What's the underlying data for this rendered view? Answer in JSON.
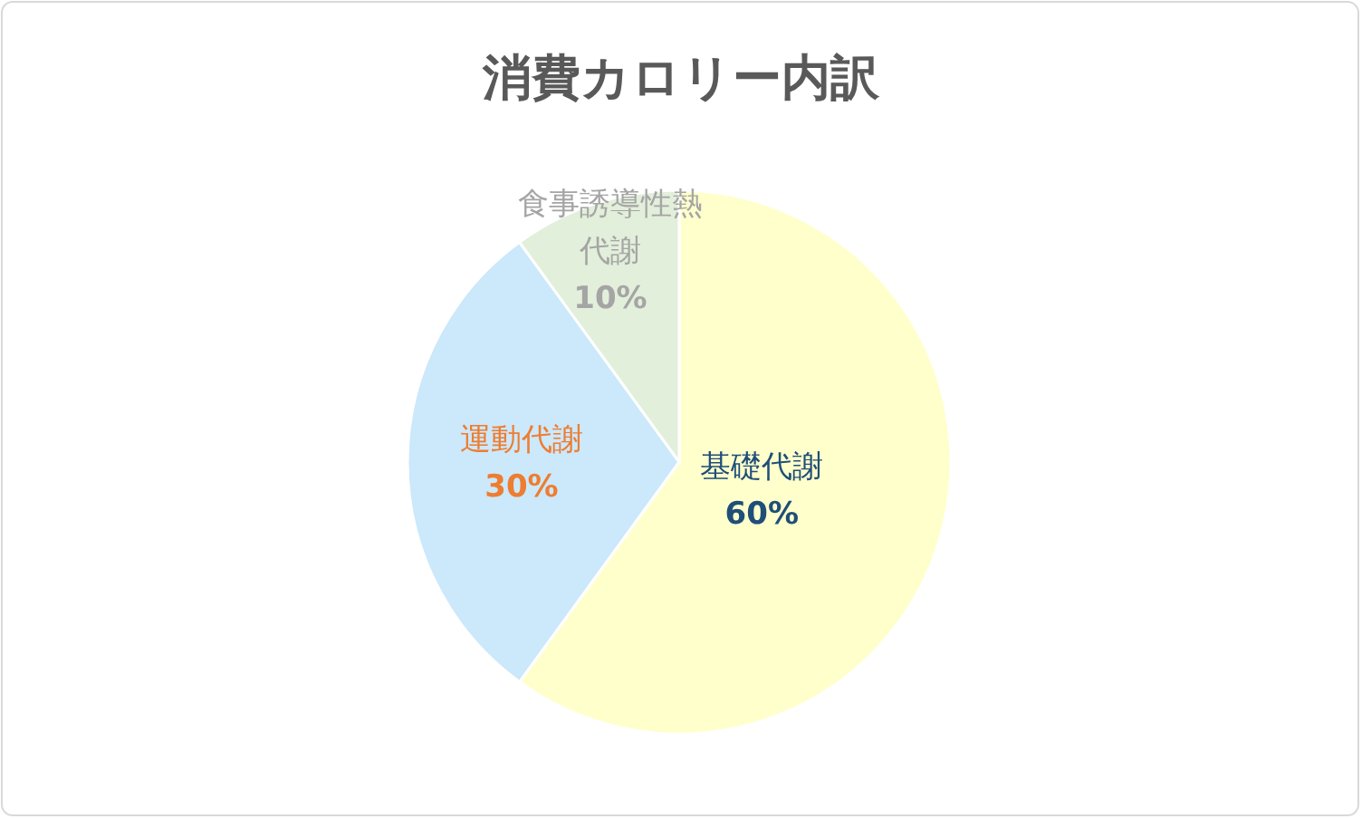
{
  "chart_data": {
    "type": "pie",
    "title": "消費カロリー内訳",
    "categories": [
      "基礎代謝",
      "運動代謝",
      "食事誘導性熱代謝"
    ],
    "values": [
      60,
      30,
      10
    ],
    "colors": [
      "#ffffcc",
      "#cce8fb",
      "#e2efda"
    ],
    "value_labels": [
      "60%",
      "30%",
      "10%"
    ]
  }
}
